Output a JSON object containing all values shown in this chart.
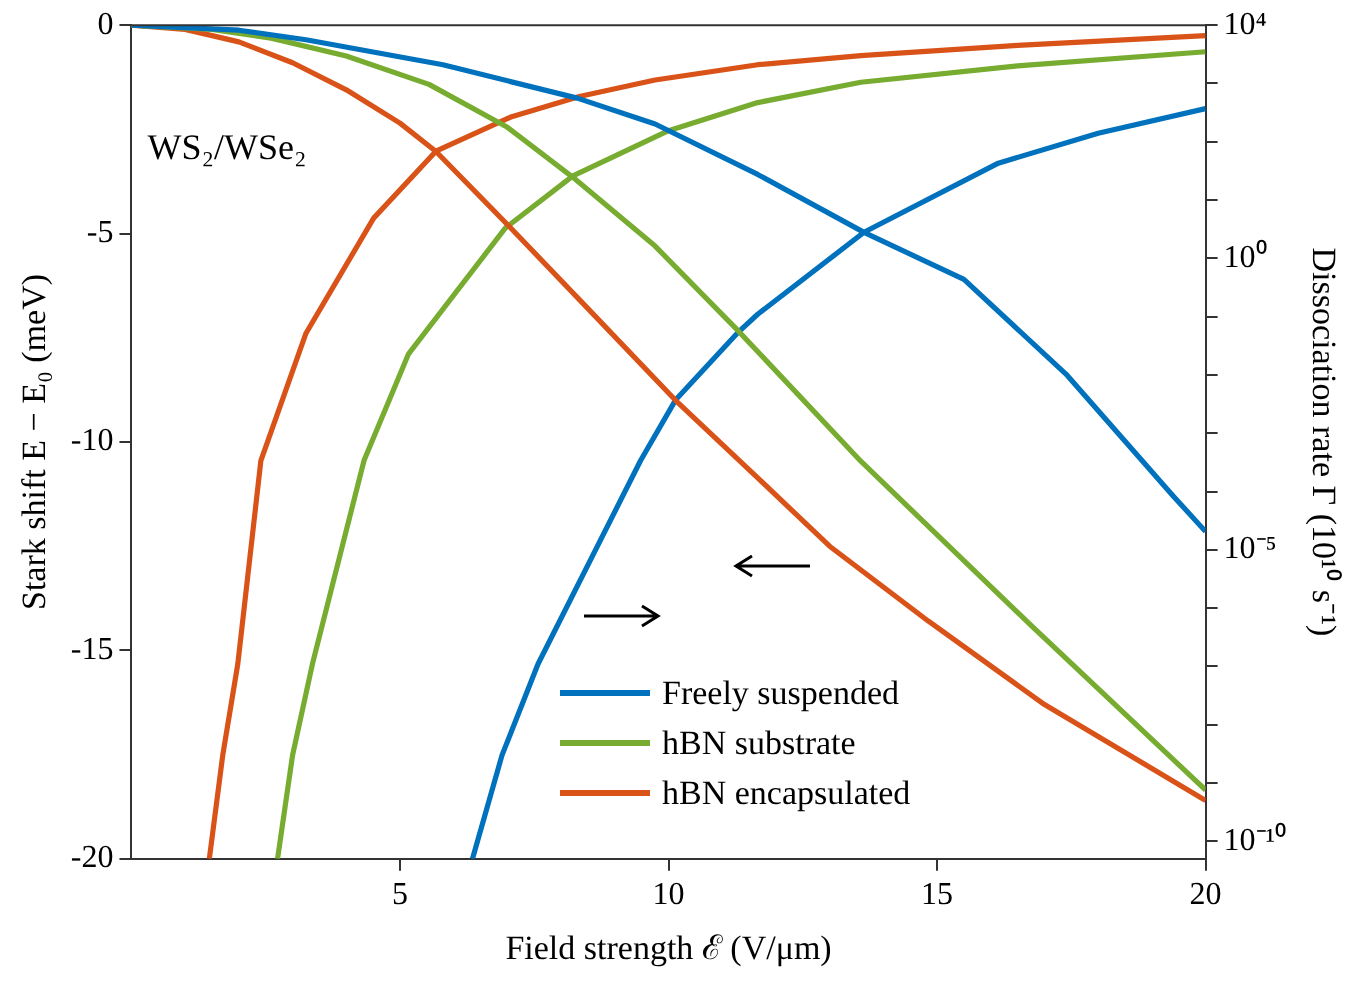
{
  "chart_data": {
    "type": "line",
    "xlabel": "Field strength ℰ (V/μm)",
    "ylabel": "Stark shift E − E₀ (meV)",
    "y2label": "Dissociation rate Γ (10¹⁰ s⁻¹)",
    "annotations": [
      "WS₂/WSe₂"
    ],
    "xlim": [
      0,
      20
    ],
    "xticks": [
      5,
      10,
      15,
      20
    ],
    "ylim": [
      -20,
      0
    ],
    "yticks": [
      -20,
      -15,
      -10,
      -5,
      0
    ],
    "y2lim": [
      5e-11,
      10000
    ],
    "y2ticks": [
      {
        "value": 10000,
        "label": "10⁴"
      },
      {
        "value": 1000,
        "label": null
      },
      {
        "value": 100,
        "label": null
      },
      {
        "value": 10,
        "label": null
      },
      {
        "value": 1,
        "label": "10⁰"
      },
      {
        "value": 0.1,
        "label": null
      },
      {
        "value": 0.01,
        "label": null
      },
      {
        "value": 0.001,
        "label": null
      },
      {
        "value": 0.0001,
        "label": null
      },
      {
        "value": 1e-05,
        "label": "10⁻⁵"
      },
      {
        "value": 1e-06,
        "label": null
      },
      {
        "value": 1e-07,
        "label": null
      },
      {
        "value": 1e-08,
        "label": null
      },
      {
        "value": 1e-09,
        "label": null
      },
      {
        "value": 1e-10,
        "label": "10⁻¹⁰"
      }
    ],
    "log": "y2",
    "grid": false,
    "legend": "bottom",
    "marker": "none",
    "line_style": "solid",
    "series": [
      {
        "name": "Freely suspended",
        "color": "#0072bd",
        "x": [
          0,
          2,
          3.25,
          5.8,
          8.3,
          9.75,
          11.66,
          13.64,
          15.5,
          17.4,
          19.4,
          20
        ],
        "values": [
          0,
          -0.12,
          -0.35,
          -0.95,
          -1.75,
          -2.37,
          -3.58,
          -4.97,
          -6.1,
          -8.37,
          -11.3,
          -12.15
        ]
      },
      {
        "name": "hBN substrate",
        "color": "#77ac30",
        "x": [
          0,
          1.5,
          2.6,
          4,
          5.54,
          7,
          8.22,
          9.75,
          11.28,
          13.58,
          16.75,
          20
        ],
        "values": [
          0,
          -0.1,
          -0.31,
          -0.74,
          -1.42,
          -2.45,
          -3.65,
          -5.3,
          -7.31,
          -10.46,
          -14.4,
          -18.35
        ]
      },
      {
        "name": "hBN encapsulated",
        "color": "#d95319",
        "x": [
          0,
          1,
          2,
          3,
          4,
          5,
          5.67,
          7.08,
          8.5,
          10.13,
          11.66,
          13,
          14.84,
          17,
          20
        ],
        "values": [
          0,
          -0.1,
          -0.4,
          -0.9,
          -1.55,
          -2.35,
          -3.03,
          -4.89,
          -6.8,
          -9,
          -10.86,
          -12.5,
          -14.3,
          -16.3,
          -18.6
        ]
      },
      {
        "color": "#0072bd",
        "axis": "y2",
        "x": [
          6.35,
          6.9,
          7.57,
          9.48,
          10.13,
          11.28,
          11.66,
          13.64,
          16.14,
          18,
          20
        ],
        "values": [
          5e-11,
          3e-09,
          1.1e-07,
          0.00034,
          0.0037,
          0.052,
          0.11,
          2.8,
          43,
          140,
          370
        ]
      },
      {
        "color": "#77ac30",
        "axis": "y2",
        "x": [
          2.72,
          3,
          3.37,
          4.33,
          5.16,
          6.96,
          8.22,
          10,
          11.66,
          13.58,
          16.5,
          20
        ],
        "values": [
          5e-11,
          3e-09,
          1.1e-07,
          0.00034,
          0.023,
          3.3,
          26,
          155,
          470,
          1050,
          2000,
          3500
        ]
      },
      {
        "color": "#d95319",
        "axis": "y2",
        "x": [
          1.45,
          1.7,
          1.98,
          2.41,
          3.25,
          4.51,
          5.67,
          7.08,
          8.34,
          9.75,
          11.66,
          13.58,
          16.5,
          20
        ],
        "values": [
          5e-11,
          3e-09,
          1.1e-07,
          0.00034,
          0.052,
          4.9,
          69,
          270,
          600,
          1150,
          2100,
          3000,
          4500,
          6600
        ]
      }
    ]
  }
}
